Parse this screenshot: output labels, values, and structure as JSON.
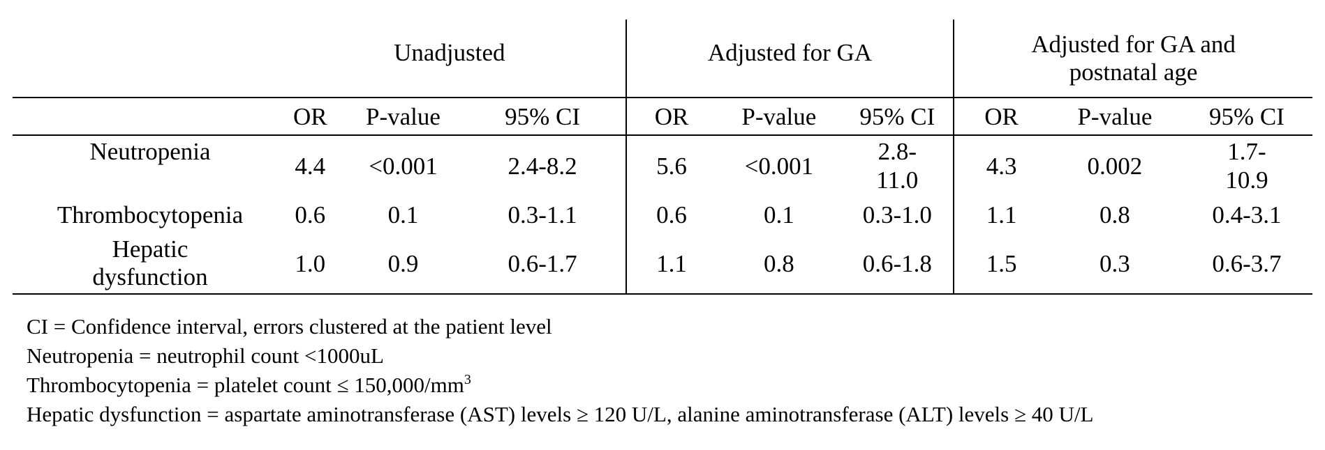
{
  "table": {
    "groups": [
      {
        "label": "Unadjusted"
      },
      {
        "label": "Adjusted for GA"
      },
      {
        "label": "Adjusted for GA and postnatal age"
      }
    ],
    "subheaders": [
      "OR",
      "P-value",
      "95% CI",
      "OR",
      "P-value",
      "95% CI",
      "OR",
      "P-value",
      "95% CI"
    ],
    "rows": [
      {
        "label": "Neutropenia",
        "values": [
          "4.4",
          "<0.001",
          "2.4-8.2",
          "5.6",
          "<0.001",
          "2.8-\n11.0",
          "4.3",
          "0.002",
          "1.7-\n10.9"
        ]
      },
      {
        "label": "Thrombocytopenia",
        "values": [
          "0.6",
          "0.1",
          "0.3-1.1",
          "0.6",
          "0.1",
          "0.3-1.0",
          "1.1",
          "0.8",
          "0.4-3.1"
        ]
      },
      {
        "label": "Hepatic\ndysfunction",
        "values": [
          "1.0",
          "0.9",
          "0.6-1.7",
          "1.1",
          "0.8",
          "0.6-1.8",
          "1.5",
          "0.3",
          "0.6-3.7"
        ]
      }
    ]
  },
  "notes": {
    "ci": "CI = Confidence interval, errors clustered at the patient level",
    "neutropenia": "Neutropenia = neutrophil count <1000uL",
    "thrombocytopenia": "Thrombocytopenia = platelet count ≤ 150,000/mm",
    "thrombocytopenia_sup": "3",
    "hepatic": "Hepatic dysfunction = aspartate aminotransferase (AST) levels ≥ 120 U/L, alanine aminotransferase (ALT) levels ≥ 40 U/L"
  }
}
